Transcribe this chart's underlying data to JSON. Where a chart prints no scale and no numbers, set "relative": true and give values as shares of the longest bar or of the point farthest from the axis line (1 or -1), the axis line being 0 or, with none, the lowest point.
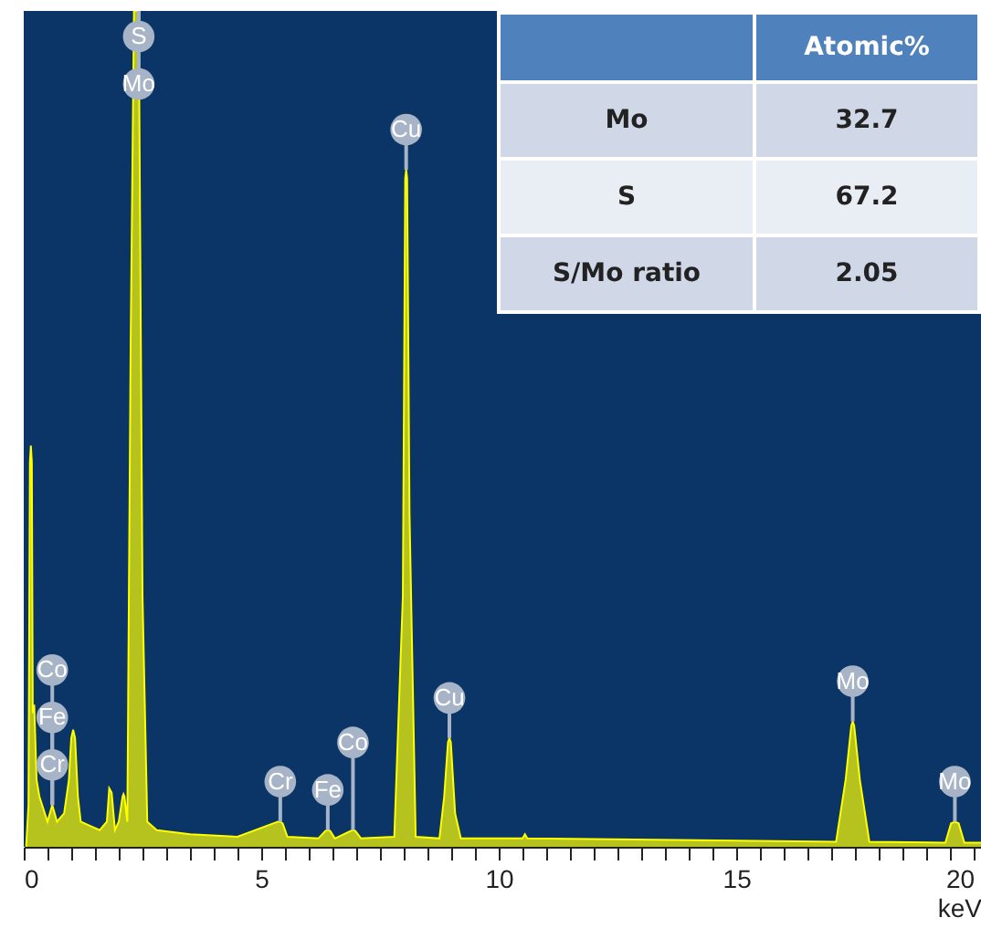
{
  "chart_data": {
    "type": "area",
    "xlabel": "keV",
    "relative": true,
    "x": [
      0.05,
      0.1,
      0.13,
      0.15,
      0.17,
      0.19,
      0.22,
      0.27,
      0.33,
      0.5,
      0.6,
      0.7,
      0.85,
      0.95,
      1.0,
      1.04,
      1.08,
      1.14,
      1.2,
      1.4,
      1.6,
      1.75,
      1.8,
      1.85,
      1.92,
      2.0,
      2.08,
      2.1,
      2.12,
      2.18,
      2.25,
      2.32,
      2.42,
      2.5,
      2.6,
      2.8,
      3.5,
      4.5,
      5.25,
      5.35,
      5.4,
      5.45,
      5.55,
      6.2,
      6.35,
      6.4,
      6.45,
      6.55,
      6.88,
      6.93,
      6.98,
      7.1,
      7.8,
      7.98,
      8.03,
      8.05,
      8.07,
      8.12,
      8.25,
      8.75,
      8.85,
      8.93,
      8.96,
      8.99,
      9.08,
      9.2,
      10.5,
      10.55,
      10.6,
      17.1,
      17.3,
      17.42,
      17.45,
      17.48,
      17.6,
      17.8,
      19.4,
      19.52,
      19.6,
      19.68,
      19.8,
      20.15
    ],
    "series": [
      {
        "color": "#ffff00",
        "values": [
          0,
          0.05,
          0.46,
          0.48,
          0.46,
          0.16,
          0.17,
          0.08,
          0.06,
          0.03,
          0.05,
          0.03,
          0.04,
          0.08,
          0.13,
          0.14,
          0.13,
          0.06,
          0.03,
          0.025,
          0.02,
          0.03,
          0.07,
          0.065,
          0.02,
          0.03,
          0.06,
          0.063,
          0.06,
          0.03,
          0.6,
          1,
          1,
          0.3,
          0.03,
          0.02,
          0.015,
          0.012,
          0.028,
          0.03,
          0.03,
          0.028,
          0.012,
          0.01,
          0.019,
          0.02,
          0.019,
          0.01,
          0.019,
          0.02,
          0.019,
          0.01,
          0.012,
          0.3,
          0.8,
          0.81,
          0.8,
          0.4,
          0.012,
          0.01,
          0.06,
          0.125,
          0.13,
          0.125,
          0.04,
          0.01,
          0.01,
          0.015,
          0.01,
          0.006,
          0.08,
          0.145,
          0.15,
          0.145,
          0.08,
          0.006,
          0.005,
          0.028,
          0.03,
          0.028,
          0.005,
          0.005
        ]
      }
    ],
    "xlim": [
      0,
      20.15
    ],
    "xticks": [
      0,
      {
        "value": 0.5,
        "label": null
      },
      {
        "value": 1,
        "label": null
      },
      {
        "value": 1.5,
        "label": null
      },
      {
        "value": 2,
        "label": null
      },
      {
        "value": 2.5,
        "label": null
      },
      {
        "value": 3,
        "label": null
      },
      {
        "value": 3.5,
        "label": null
      },
      {
        "value": 4,
        "label": null
      },
      {
        "value": 4.5,
        "label": null
      },
      5,
      {
        "value": 5.5,
        "label": null
      },
      {
        "value": 6,
        "label": null
      },
      {
        "value": 6.5,
        "label": null
      },
      {
        "value": 7,
        "label": null
      },
      {
        "value": 7.5,
        "label": null
      },
      {
        "value": 8,
        "label": null
      },
      {
        "value": 8.5,
        "label": null
      },
      {
        "value": 9,
        "label": null
      },
      {
        "value": 9.5,
        "label": null
      },
      10,
      {
        "value": 10.5,
        "label": null
      },
      {
        "value": 11,
        "label": null
      },
      {
        "value": 11.5,
        "label": null
      },
      {
        "value": 12,
        "label": null
      },
      {
        "value": 12.5,
        "label": null
      },
      {
        "value": 13,
        "label": null
      },
      {
        "value": 13.5,
        "label": null
      },
      {
        "value": 14,
        "label": null
      },
      {
        "value": 14.5,
        "label": null
      },
      15,
      {
        "value": 15.5,
        "label": null
      },
      {
        "value": 16,
        "label": null
      },
      {
        "value": 16.5,
        "label": null
      },
      {
        "value": 17,
        "label": null
      },
      {
        "value": 17.5,
        "label": null
      },
      {
        "value": 18,
        "label": null
      },
      {
        "value": 18.5,
        "label": null
      },
      {
        "value": 19,
        "label": null
      },
      {
        "value": 19.5,
        "label": null
      },
      20
    ],
    "annotations": [
      {
        "text": "S",
        "x": 2.42,
        "y": 1
      },
      {
        "text": "Mo",
        "x": 2.42,
        "y": 1
      },
      {
        "text": "Cu",
        "x": 8.05,
        "y": 0.81
      },
      {
        "text": "Cu",
        "x": 8.96,
        "y": 0.13
      },
      {
        "text": "Co",
        "x": 0.6,
        "y": 0.05
      },
      {
        "text": "Fe",
        "x": 0.6,
        "y": 0.05
      },
      {
        "text": "Cr",
        "x": 0.6,
        "y": 0.05
      },
      {
        "text": "Cr",
        "x": 5.4,
        "y": 0.03
      },
      {
        "text": "Fe",
        "x": 6.4,
        "y": 0.02
      },
      {
        "text": "Co",
        "x": 6.93,
        "y": 0.02
      },
      {
        "text": "Mo",
        "x": 17.45,
        "y": 0.15
      },
      {
        "text": "Mo",
        "x": 19.6,
        "y": 0.03
      },
      "Atomic%",
      "Mo",
      "32.7",
      "S",
      "67.2",
      "S/Mo ratio",
      "2.05"
    ]
  }
}
